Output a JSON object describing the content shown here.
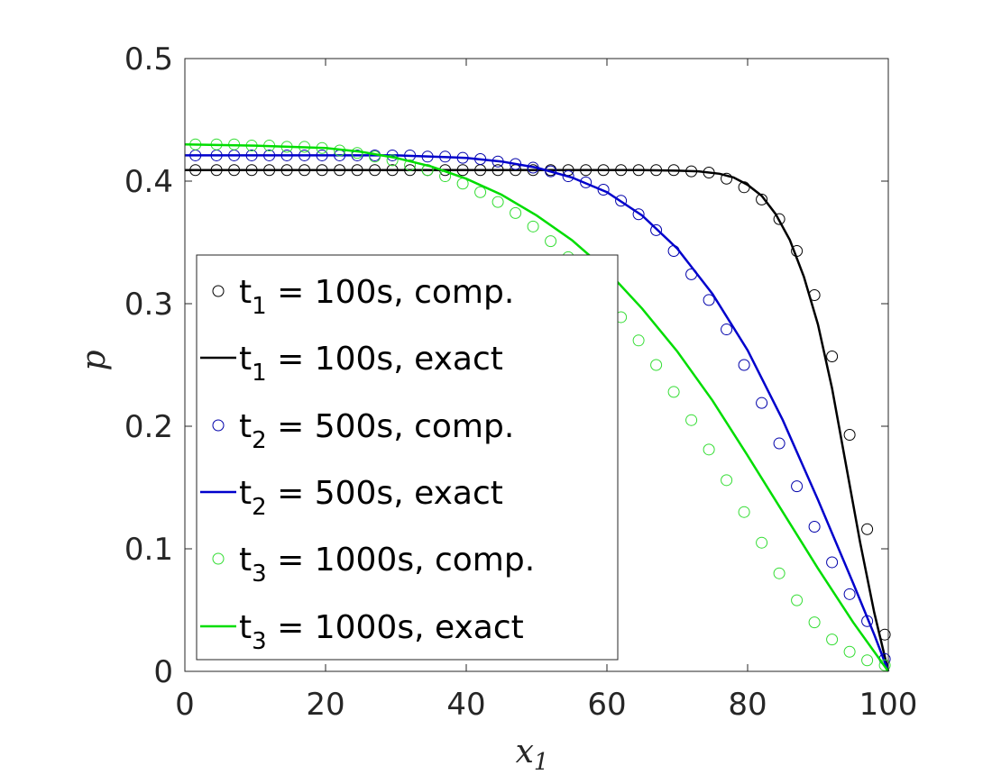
{
  "chart_data": {
    "type": "line",
    "xlabel": "x",
    "xlabel_sub": "1",
    "ylabel": "p",
    "xlim": [
      0,
      100
    ],
    "ylim": [
      0,
      0.5
    ],
    "xticks": [
      0,
      20,
      40,
      60,
      80,
      100
    ],
    "yticks": [
      0,
      0.1,
      0.2,
      0.3,
      0.4,
      0.5
    ],
    "xtick_labels": [
      "0",
      "20",
      "40",
      "60",
      "80",
      "100"
    ],
    "ytick_labels": [
      "0",
      "0.1",
      "0.2",
      "0.3",
      "0.4",
      "0.5"
    ],
    "grid": false,
    "legend_position": "left",
    "series": [
      {
        "name": "t1 = 100s, comp.",
        "label_parts": [
          "t",
          "1",
          " = 100s, comp."
        ],
        "style": "markers",
        "marker": "circle",
        "color": "#000000",
        "x": [
          1.5,
          4.5,
          7,
          9.5,
          12,
          14.5,
          17,
          19.5,
          22,
          24.5,
          27,
          29.5,
          32,
          34.5,
          37,
          39.5,
          42,
          44.5,
          47,
          49.5,
          52,
          54.5,
          57,
          59.5,
          62,
          64.5,
          67,
          69.5,
          72,
          74.5,
          77,
          79.5,
          82,
          84.5,
          87,
          89.5,
          92,
          94.5,
          97,
          99.5
        ],
        "y": [
          0.409,
          0.409,
          0.409,
          0.409,
          0.409,
          0.409,
          0.409,
          0.409,
          0.409,
          0.409,
          0.409,
          0.409,
          0.409,
          0.409,
          0.409,
          0.409,
          0.409,
          0.409,
          0.409,
          0.409,
          0.409,
          0.409,
          0.409,
          0.409,
          0.409,
          0.409,
          0.409,
          0.409,
          0.408,
          0.407,
          0.402,
          0.395,
          0.385,
          0.369,
          0.343,
          0.307,
          0.257,
          0.193,
          0.116,
          0.03
        ]
      },
      {
        "name": "t1 = 100s, exact",
        "label_parts": [
          "t",
          "1",
          " = 100s, exact"
        ],
        "style": "line",
        "color": "#000000",
        "x": [
          0,
          10,
          20,
          30,
          40,
          50,
          60,
          65,
          70,
          73,
          76,
          78,
          80,
          82,
          84,
          86,
          88,
          90,
          92,
          94,
          96,
          98,
          100
        ],
        "y": [
          0.409,
          0.409,
          0.409,
          0.409,
          0.409,
          0.409,
          0.409,
          0.409,
          0.4085,
          0.408,
          0.406,
          0.403,
          0.397,
          0.388,
          0.373,
          0.352,
          0.322,
          0.283,
          0.231,
          0.168,
          0.105,
          0.048,
          0.0
        ]
      },
      {
        "name": "t2 = 500s, comp.",
        "label_parts": [
          "t",
          "2",
          " = 500s, comp."
        ],
        "style": "markers",
        "marker": "circle",
        "color": "#0000aa",
        "x": [
          1.5,
          4.5,
          7,
          9.5,
          12,
          14.5,
          17,
          19.5,
          22,
          24.5,
          27,
          29.5,
          32,
          34.5,
          37,
          39.5,
          42,
          44.5,
          47,
          49.5,
          52,
          54.5,
          57,
          59.5,
          62,
          64.5,
          67,
          69.5,
          72,
          74.5,
          77,
          79.5,
          82,
          84.5,
          87,
          89.5,
          92,
          94.5,
          97,
          99.5
        ],
        "y": [
          0.421,
          0.421,
          0.421,
          0.421,
          0.421,
          0.421,
          0.421,
          0.421,
          0.421,
          0.421,
          0.421,
          0.421,
          0.421,
          0.42,
          0.42,
          0.419,
          0.418,
          0.416,
          0.414,
          0.411,
          0.408,
          0.404,
          0.399,
          0.393,
          0.384,
          0.373,
          0.36,
          0.343,
          0.324,
          0.303,
          0.279,
          0.25,
          0.219,
          0.186,
          0.151,
          0.118,
          0.089,
          0.063,
          0.041,
          0.01
        ]
      },
      {
        "name": "t2 = 500s, exact",
        "label_parts": [
          "t",
          "2",
          " = 500s, exact"
        ],
        "style": "line",
        "color": "#0000cc",
        "x": [
          0,
          10,
          20,
          30,
          35,
          40,
          45,
          50,
          55,
          60,
          65,
          70,
          75,
          80,
          85,
          90,
          95,
          98,
          100
        ],
        "y": [
          0.421,
          0.421,
          0.421,
          0.421,
          0.42,
          0.419,
          0.416,
          0.411,
          0.403,
          0.391,
          0.372,
          0.345,
          0.308,
          0.262,
          0.205,
          0.14,
          0.072,
          0.03,
          0.0
        ]
      },
      {
        "name": "t3 = 1000s, comp.",
        "label_parts": [
          "t",
          "3",
          " = 1000s, comp."
        ],
        "style": "markers",
        "marker": "circle",
        "color": "#33dd33",
        "x": [
          1.5,
          4.5,
          7,
          9.5,
          12,
          14.5,
          17,
          19.5,
          22,
          24.5,
          27,
          29.5,
          32,
          34.5,
          37,
          39.5,
          42,
          44.5,
          47,
          49.5,
          52,
          54.5,
          57,
          59.5,
          62,
          64.5,
          67,
          69.5,
          72,
          74.5,
          77,
          79.5,
          82,
          84.5,
          87,
          89.5,
          92,
          94.5,
          97,
          99.5
        ],
        "y": [
          0.43,
          0.43,
          0.43,
          0.429,
          0.429,
          0.428,
          0.428,
          0.427,
          0.425,
          0.423,
          0.42,
          0.417,
          0.413,
          0.409,
          0.404,
          0.398,
          0.391,
          0.383,
          0.374,
          0.363,
          0.351,
          0.338,
          0.323,
          0.307,
          0.289,
          0.27,
          0.25,
          0.228,
          0.205,
          0.181,
          0.156,
          0.13,
          0.105,
          0.08,
          0.058,
          0.04,
          0.026,
          0.016,
          0.009,
          0.005
        ]
      },
      {
        "name": "t3 = 1000s, exact",
        "label_parts": [
          "t",
          "3",
          " = 1000s, exact"
        ],
        "style": "line",
        "color": "#00dd00",
        "x": [
          0,
          10,
          20,
          25,
          30,
          35,
          40,
          45,
          50,
          55,
          60,
          65,
          70,
          75,
          80,
          85,
          90,
          95,
          100
        ],
        "y": [
          0.43,
          0.429,
          0.427,
          0.424,
          0.419,
          0.412,
          0.402,
          0.389,
          0.372,
          0.352,
          0.327,
          0.296,
          0.261,
          0.221,
          0.176,
          0.13,
          0.084,
          0.04,
          0.0
        ]
      }
    ]
  }
}
